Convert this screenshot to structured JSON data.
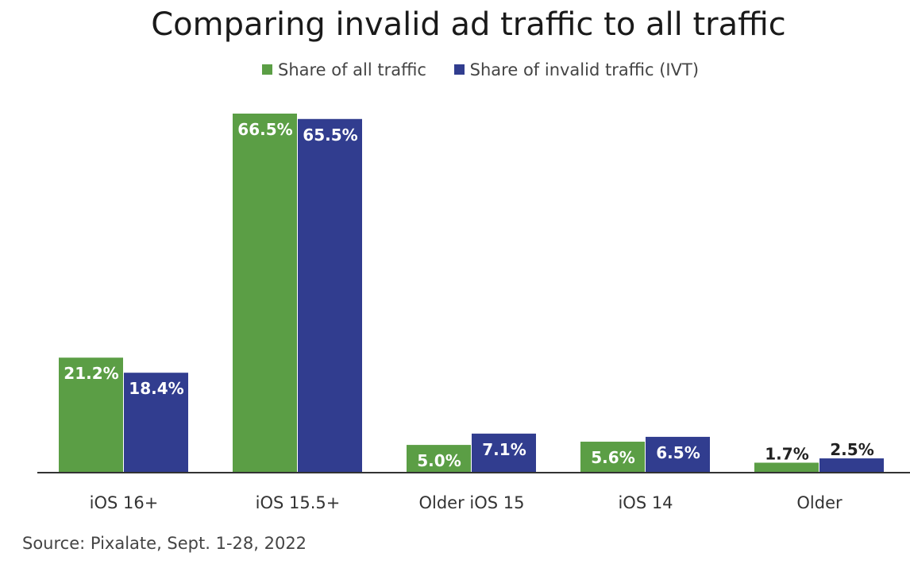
{
  "chart_data": {
    "type": "bar",
    "title": "Comparing invalid ad traffic to all traffic",
    "categories": [
      "iOS 16+",
      "iOS 15.5+",
      "Older iOS 15",
      "iOS 14",
      "Older"
    ],
    "series": [
      {
        "name": "Share of all traffic",
        "color": "#5b9e45",
        "values": [
          21.2,
          66.5,
          5.0,
          5.6,
          1.7
        ],
        "labels": [
          "21.2%",
          "66.5%",
          "5.0%",
          "5.6%",
          "1.7%"
        ]
      },
      {
        "name": "Share of invalid traffic (IVT)",
        "color": "#313d8f",
        "values": [
          18.4,
          65.5,
          7.1,
          6.5,
          2.5
        ],
        "labels": [
          "18.4%",
          "65.5%",
          "7.1%",
          "6.5%",
          "2.5%"
        ]
      }
    ],
    "xlabel": "",
    "ylabel": "",
    "ylim": [
      0,
      66.5
    ],
    "legend": "top-center",
    "grid": false
  },
  "source": "Source: Pixalate, Sept. 1-28, 2022"
}
